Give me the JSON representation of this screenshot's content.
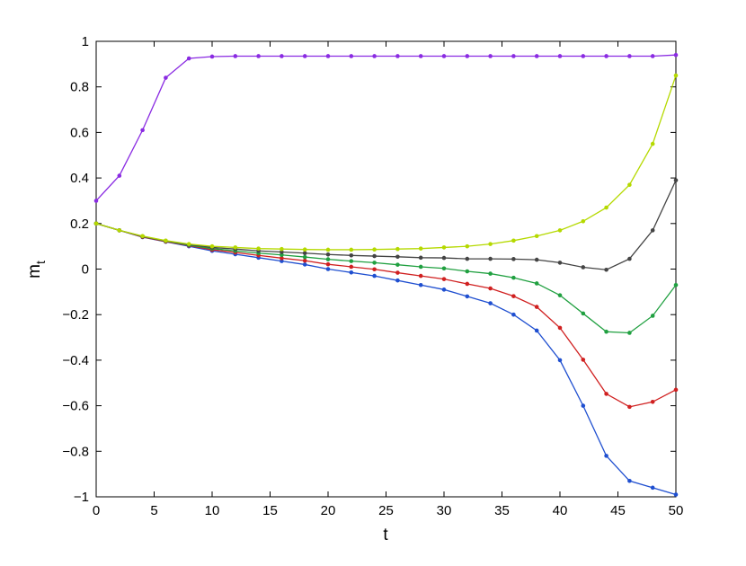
{
  "chart_data": {
    "type": "line",
    "x_label": "t",
    "y_label": {
      "main": "m",
      "sub": "t"
    },
    "x": [
      0,
      2,
      4,
      6,
      8,
      10,
      12,
      14,
      16,
      18,
      20,
      22,
      24,
      26,
      28,
      30,
      32,
      34,
      36,
      38,
      40,
      42,
      44,
      46,
      48,
      50
    ],
    "xlim": [
      0,
      50
    ],
    "xticks": [
      0,
      5,
      10,
      15,
      20,
      25,
      30,
      35,
      40,
      45,
      50
    ],
    "ylim": [
      -1,
      1
    ],
    "yticks": [
      {
        "value": -1,
        "label": "−1"
      },
      {
        "value": -0.8,
        "label": "−0.8"
      },
      {
        "value": -0.6,
        "label": "−0.6"
      },
      {
        "value": -0.4,
        "label": "−0.4"
      },
      {
        "value": -0.2,
        "label": "−0.2"
      },
      0,
      0.2,
      0.4,
      0.6,
      0.8,
      1
    ],
    "series": [
      {
        "color": "#8a2be2",
        "values": [
          0.3,
          0.41,
          0.61,
          0.84,
          0.925,
          0.933,
          0.935,
          0.935,
          0.935,
          0.935,
          0.935,
          0.935,
          0.935,
          0.935,
          0.935,
          0.935,
          0.935,
          0.935,
          0.935,
          0.935,
          0.935,
          0.935,
          0.935,
          0.935,
          0.935,
          0.94
        ]
      },
      {
        "color": "#1f4fd0",
        "values": [
          0.2,
          0.17,
          0.14,
          0.12,
          0.1,
          0.08,
          0.065,
          0.05,
          0.035,
          0.02,
          0.0,
          -0.015,
          -0.03,
          -0.05,
          -0.07,
          -0.09,
          -0.12,
          -0.15,
          -0.2,
          -0.27,
          -0.4,
          -0.6,
          -0.82,
          -0.93,
          -0.96,
          -0.99
        ]
      },
      {
        "color": "#d02020",
        "values": [
          0.2,
          0.17,
          0.141,
          0.121,
          0.103,
          0.085,
          0.073,
          0.06,
          0.048,
          0.037,
          0.021,
          0.01,
          -0.001,
          -0.016,
          -0.03,
          -0.044,
          -0.065,
          -0.085,
          -0.119,
          -0.166,
          -0.258,
          -0.398,
          -0.548,
          -0.605,
          -0.583,
          -0.53
        ]
      },
      {
        "color": "#20a040",
        "values": [
          0.2,
          0.17,
          0.143,
          0.123,
          0.105,
          0.09,
          0.08,
          0.07,
          0.062,
          0.053,
          0.043,
          0.035,
          0.028,
          0.019,
          0.01,
          0.003,
          -0.01,
          -0.02,
          -0.038,
          -0.063,
          -0.115,
          -0.195,
          -0.275,
          -0.28,
          -0.205,
          -0.07
        ]
      },
      {
        "color": "#444444",
        "values": [
          0.2,
          0.17,
          0.144,
          0.124,
          0.108,
          0.095,
          0.088,
          0.08,
          0.075,
          0.07,
          0.064,
          0.06,
          0.057,
          0.054,
          0.05,
          0.049,
          0.045,
          0.045,
          0.044,
          0.041,
          0.028,
          0.008,
          -0.003,
          0.045,
          0.17,
          0.39
        ]
      },
      {
        "color": "#b5d900",
        "values": [
          0.2,
          0.17,
          0.145,
          0.125,
          0.11,
          0.1,
          0.095,
          0.09,
          0.088,
          0.086,
          0.085,
          0.085,
          0.086,
          0.088,
          0.09,
          0.095,
          0.1,
          0.11,
          0.125,
          0.145,
          0.17,
          0.21,
          0.27,
          0.37,
          0.55,
          0.85
        ]
      }
    ]
  }
}
